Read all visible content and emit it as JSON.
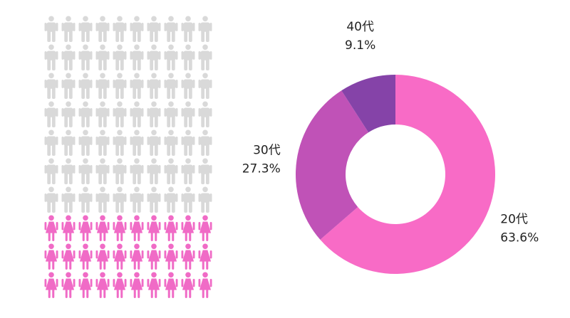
{
  "chart_data": [
    {
      "type": "pictogram",
      "total": 100,
      "highlighted": 30,
      "columns": 10,
      "rows": 10,
      "colors": {
        "highlighted": "#f06bc6",
        "base": "#d9d9d9"
      },
      "icons": {
        "base": "person-icon",
        "highlighted": "woman-icon"
      }
    },
    {
      "type": "pie",
      "donut": true,
      "slices": [
        {
          "label": "20代",
          "value": 63.6,
          "value_label": "63.6%",
          "color": "#f86bc6"
        },
        {
          "label": "30代",
          "value": 27.3,
          "value_label": "27.3%",
          "color": "#c052b7"
        },
        {
          "label": "40代",
          "value": 9.1,
          "value_label": "9.1%",
          "color": "#8543a8"
        }
      ]
    }
  ]
}
